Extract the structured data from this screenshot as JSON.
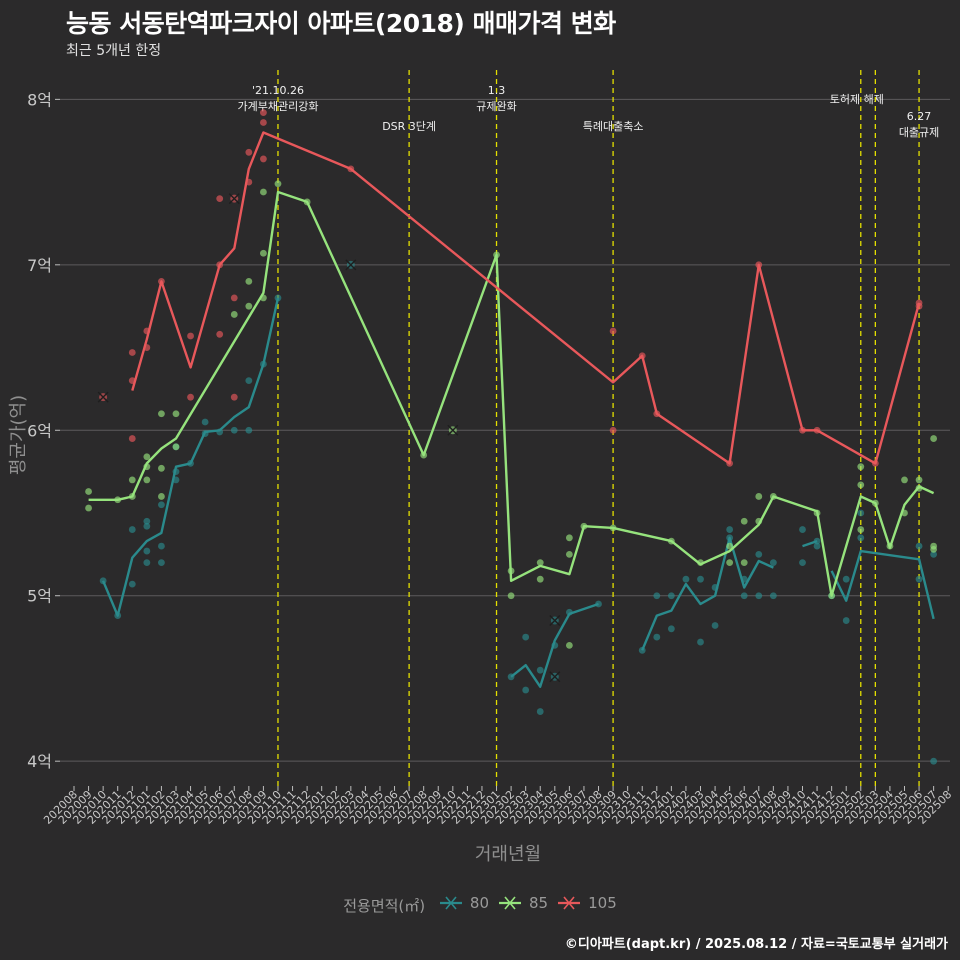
{
  "title": "능동 서동탄역파크자이 아파트(2018) 매매가격 변화",
  "subtitle": "최근 5개년 한정",
  "caption": "©디아파트(dapt.kr) / 2025.08.12 / 자료=국토교통부 실거래가",
  "chart_data": {
    "type": "line",
    "xlabel": "거래년월",
    "ylabel": "평균가(억)",
    "ylim": [
      3.85,
      8.25
    ],
    "yticks": [
      4,
      5,
      6,
      7,
      8
    ],
    "ytick_labels": [
      "4억",
      "5억",
      "6억",
      "7억",
      "8억"
    ],
    "categories": [
      "202008",
      "202009",
      "202010",
      "202011",
      "202012",
      "202101",
      "202102",
      "202103",
      "202104",
      "202105",
      "202106",
      "202107",
      "202108",
      "202109",
      "202110",
      "202111",
      "202112",
      "202201",
      "202202",
      "202203",
      "202204",
      "202205",
      "202206",
      "202207",
      "202208",
      "202209",
      "202210",
      "202211",
      "202212",
      "202301",
      "202302",
      "202303",
      "202304",
      "202305",
      "202306",
      "202307",
      "202308",
      "202309",
      "202310",
      "202311",
      "202312",
      "202401",
      "202402",
      "202403",
      "202404",
      "202405",
      "202406",
      "202407",
      "202408",
      "202409",
      "202410",
      "202411",
      "202412",
      "202501",
      "202502",
      "202503",
      "202504",
      "202505",
      "202506",
      "202507",
      "202508"
    ],
    "legend_title": "전용면적(㎡)",
    "annotations": [
      {
        "x": "202110",
        "label": "'21.10.26 가계부채관리강화",
        "lines": [
          "'21.10.26",
          "가계부채관리강화"
        ]
      },
      {
        "x": "202207",
        "label": "DSR 3단계",
        "lines": [
          "DSR 3단계"
        ]
      },
      {
        "x": "202301",
        "label": "1.3 규제완화",
        "lines": [
          "1.3",
          "규제완화"
        ]
      },
      {
        "x": "202309",
        "label": "특례대출축소",
        "lines": [
          "특례대출축소"
        ]
      },
      {
        "x": "202502",
        "label": "토허제 해제",
        "lines": [
          "토허제 해제"
        ]
      },
      {
        "x": "202503",
        "label": "",
        "lines": []
      },
      {
        "x": "202506",
        "label": "6.27 대출규제",
        "lines": [
          "6.27",
          "대출규제"
        ]
      }
    ],
    "series": [
      {
        "name": "80",
        "color": "#2a8a8c",
        "line": [
          [
            [
              "202010",
              5.09
            ],
            [
              "202011",
              4.88
            ],
            [
              "202012",
              5.23
            ],
            [
              "202101",
              5.33
            ],
            [
              "202102",
              5.38
            ],
            [
              "202103",
              5.78
            ],
            [
              "202104",
              5.8
            ],
            [
              "202105",
              5.99
            ],
            [
              "202106",
              6.0
            ],
            [
              "202107",
              6.08
            ],
            [
              "202108",
              6.14
            ],
            [
              "202109",
              6.4
            ],
            [
              "202110",
              6.8
            ]
          ],
          [
            [
              "202302",
              4.51
            ],
            [
              "202303",
              4.58
            ],
            [
              "202304",
              4.45
            ],
            [
              "202305",
              4.73
            ],
            [
              "202306",
              4.89
            ],
            [
              "202308",
              4.95
            ]
          ],
          [
            [
              "202311",
              4.67
            ],
            [
              "202312",
              4.88
            ],
            [
              "202401",
              4.91
            ],
            [
              "202402",
              5.07
            ],
            [
              "202403",
              4.95
            ],
            [
              "202404",
              5.0
            ],
            [
              "202405",
              5.35
            ],
            [
              "202406",
              5.05
            ],
            [
              "202407",
              5.21
            ],
            [
              "202408",
              5.17
            ]
          ],
          [
            [
              "202410",
              5.3
            ],
            [
              "202411",
              5.33
            ]
          ],
          [
            [
              "202412",
              5.15
            ],
            [
              "202501",
              4.97
            ],
            [
              "202502",
              5.27
            ],
            [
              "202506",
              5.22
            ],
            [
              "202507",
              4.86
            ]
          ]
        ],
        "points": [
          [
            "202010",
            5.09
          ],
          [
            "202011",
            4.88
          ],
          [
            "202012",
            5.07
          ],
          [
            "202012",
            5.4
          ],
          [
            "202101",
            5.2
          ],
          [
            "202101",
            5.27
          ],
          [
            "202101",
            5.45
          ],
          [
            "202101",
            5.42
          ],
          [
            "202102",
            5.2
          ],
          [
            "202102",
            5.3
          ],
          [
            "202102",
            5.55
          ],
          [
            "202103",
            5.7
          ],
          [
            "202103",
            5.75
          ],
          [
            "202103",
            5.9
          ],
          [
            "202104",
            5.8
          ],
          [
            "202105",
            6.05
          ],
          [
            "202105",
            5.98
          ],
          [
            "202106",
            5.99
          ],
          [
            "202107",
            6.0
          ],
          [
            "202108",
            6.0
          ],
          [
            "202108",
            6.3
          ],
          [
            "202109",
            6.4
          ],
          [
            "202110",
            6.8
          ],
          [
            "202302",
            4.51
          ],
          [
            "202303",
            4.75
          ],
          [
            "202303",
            4.43
          ],
          [
            "202304",
            4.3
          ],
          [
            "202304",
            4.55
          ],
          [
            "202305",
            4.7
          ],
          [
            "202306",
            4.9
          ],
          [
            "202308",
            4.95
          ],
          [
            "202311",
            4.67
          ],
          [
            "202312",
            4.75
          ],
          [
            "202312",
            5.0
          ],
          [
            "202401",
            4.8
          ],
          [
            "202401",
            5.0
          ],
          [
            "202402",
            5.1
          ],
          [
            "202403",
            4.72
          ],
          [
            "202403",
            5.1
          ],
          [
            "202404",
            4.82
          ],
          [
            "202404",
            5.05
          ],
          [
            "202405",
            5.4
          ],
          [
            "202405",
            5.35
          ],
          [
            "202406",
            5.0
          ],
          [
            "202406",
            5.1
          ],
          [
            "202407",
            5.25
          ],
          [
            "202407",
            5.0
          ],
          [
            "202408",
            5.2
          ],
          [
            "202408",
            5.0
          ],
          [
            "202410",
            5.2
          ],
          [
            "202410",
            5.4
          ],
          [
            "202411",
            5.3
          ],
          [
            "202411",
            5.33
          ],
          [
            "202412",
            5.0
          ],
          [
            "202501",
            5.1
          ],
          [
            "202501",
            4.85
          ],
          [
            "202502",
            5.35
          ],
          [
            "202502",
            5.5
          ],
          [
            "202506",
            5.3
          ],
          [
            "202506",
            5.1
          ],
          [
            "202507",
            5.25
          ],
          [
            "202507",
            4.0
          ]
        ],
        "cross": [
          [
            "202203",
            7.0
          ],
          [
            "202305",
            4.85
          ],
          [
            "202305",
            4.51
          ]
        ]
      },
      {
        "name": "85",
        "color": "#96e37d",
        "line": [
          [
            [
              "202009",
              5.58
            ],
            [
              "202011",
              5.58
            ],
            [
              "202012",
              5.6
            ],
            [
              "202101",
              5.8
            ],
            [
              "202102",
              5.89
            ],
            [
              "202103",
              5.95
            ],
            [
              "202109",
              6.83
            ],
            [
              "202110",
              7.44
            ],
            [
              "202112",
              7.38
            ],
            [
              "202208",
              5.85
            ],
            [
              "202301",
              7.06
            ],
            [
              "202302",
              5.09
            ],
            [
              "202304",
              5.18
            ],
            [
              "202306",
              5.13
            ],
            [
              "202307",
              5.42
            ],
            [
              "202309",
              5.41
            ],
            [
              "202401",
              5.33
            ],
            [
              "202403",
              5.19
            ],
            [
              "202405",
              5.27
            ],
            [
              "202407",
              5.43
            ],
            [
              "202408",
              5.6
            ],
            [
              "202411",
              5.51
            ],
            [
              "202412",
              5.0
            ],
            [
              "202502",
              5.6
            ],
            [
              "202503",
              5.56
            ],
            [
              "202504",
              5.29
            ],
            [
              "202505",
              5.55
            ],
            [
              "202506",
              5.66
            ],
            [
              "202507",
              5.62
            ]
          ]
        ],
        "points": [
          [
            "202009",
            5.63
          ],
          [
            "202009",
            5.53
          ],
          [
            "202011",
            5.58
          ],
          [
            "202012",
            5.6
          ],
          [
            "202012",
            5.7
          ],
          [
            "202101",
            5.84
          ],
          [
            "202101",
            5.78
          ],
          [
            "202101",
            5.7
          ],
          [
            "202102",
            6.1
          ],
          [
            "202102",
            5.77
          ],
          [
            "202102",
            5.6
          ],
          [
            "202103",
            6.1
          ],
          [
            "202103",
            5.9
          ],
          [
            "202107",
            6.7
          ],
          [
            "202108",
            6.9
          ],
          [
            "202108",
            6.75
          ],
          [
            "202109",
            7.44
          ],
          [
            "202109",
            7.07
          ],
          [
            "202109",
            6.8
          ],
          [
            "202110",
            7.49
          ],
          [
            "202112",
            7.38
          ],
          [
            "202208",
            5.85
          ],
          [
            "202301",
            7.06
          ],
          [
            "202302",
            5.15
          ],
          [
            "202302",
            5.0
          ],
          [
            "202304",
            5.2
          ],
          [
            "202304",
            5.1
          ],
          [
            "202306",
            5.35
          ],
          [
            "202306",
            5.25
          ],
          [
            "202306",
            4.7
          ],
          [
            "202307",
            5.42
          ],
          [
            "202309",
            5.41
          ],
          [
            "202401",
            5.33
          ],
          [
            "202403",
            5.2
          ],
          [
            "202405",
            5.3
          ],
          [
            "202405",
            5.2
          ],
          [
            "202406",
            5.45
          ],
          [
            "202406",
            5.2
          ],
          [
            "202407",
            5.6
          ],
          [
            "202407",
            5.45
          ],
          [
            "202408",
            5.6
          ],
          [
            "202411",
            5.5
          ],
          [
            "202412",
            5.0
          ],
          [
            "202502",
            5.78
          ],
          [
            "202502",
            5.67
          ],
          [
            "202502",
            5.4
          ],
          [
            "202503",
            5.56
          ],
          [
            "202504",
            5.3
          ],
          [
            "202505",
            5.7
          ],
          [
            "202505",
            5.5
          ],
          [
            "202506",
            5.7
          ],
          [
            "202506",
            5.65
          ],
          [
            "202507",
            5.95
          ],
          [
            "202507",
            5.3
          ],
          [
            "202507",
            5.28
          ]
        ],
        "cross": [
          [
            "202210",
            6.0
          ]
        ]
      },
      {
        "name": "105",
        "color": "#e8585b",
        "line": [
          [
            [
              "202012",
              6.24
            ],
            [
              "202101",
              6.55
            ],
            [
              "202102",
              6.9
            ],
            [
              "202104",
              6.38
            ],
            [
              "202106",
              7.0
            ],
            [
              "202107",
              7.1
            ],
            [
              "202108",
              7.58
            ],
            [
              "202109",
              7.8
            ],
            [
              "202203",
              7.58
            ],
            [
              "202309",
              6.29
            ],
            [
              "202311",
              6.45
            ],
            [
              "202312",
              6.1
            ],
            [
              "202405",
              5.8
            ],
            [
              "202407",
              7.0
            ],
            [
              "202410",
              6.0
            ],
            [
              "202411",
              6.0
            ],
            [
              "202503",
              5.8
            ],
            [
              "202506",
              6.77
            ]
          ]
        ],
        "points": [
          [
            "202012",
            6.3
          ],
          [
            "202012",
            6.47
          ],
          [
            "202012",
            5.95
          ],
          [
            "202101",
            6.6
          ],
          [
            "202101",
            6.5
          ],
          [
            "202102",
            6.9
          ],
          [
            "202104",
            6.57
          ],
          [
            "202104",
            6.2
          ],
          [
            "202106",
            7.0
          ],
          [
            "202106",
            6.58
          ],
          [
            "202106",
            7.4
          ],
          [
            "202107",
            6.8
          ],
          [
            "202107",
            6.2
          ],
          [
            "202108",
            7.68
          ],
          [
            "202108",
            7.5
          ],
          [
            "202109",
            7.92
          ],
          [
            "202109",
            7.86
          ],
          [
            "202109",
            7.64
          ],
          [
            "202203",
            7.58
          ],
          [
            "202309",
            6.6
          ],
          [
            "202309",
            6.0
          ],
          [
            "202311",
            6.45
          ],
          [
            "202312",
            6.1
          ],
          [
            "202405",
            5.8
          ],
          [
            "202407",
            7.0
          ],
          [
            "202410",
            6.0
          ],
          [
            "202411",
            6.0
          ],
          [
            "202503",
            5.8
          ],
          [
            "202506",
            6.77
          ],
          [
            "202506",
            6.75
          ]
        ],
        "cross": [
          [
            "202010",
            6.2
          ],
          [
            "202107",
            7.4
          ]
        ]
      }
    ]
  }
}
